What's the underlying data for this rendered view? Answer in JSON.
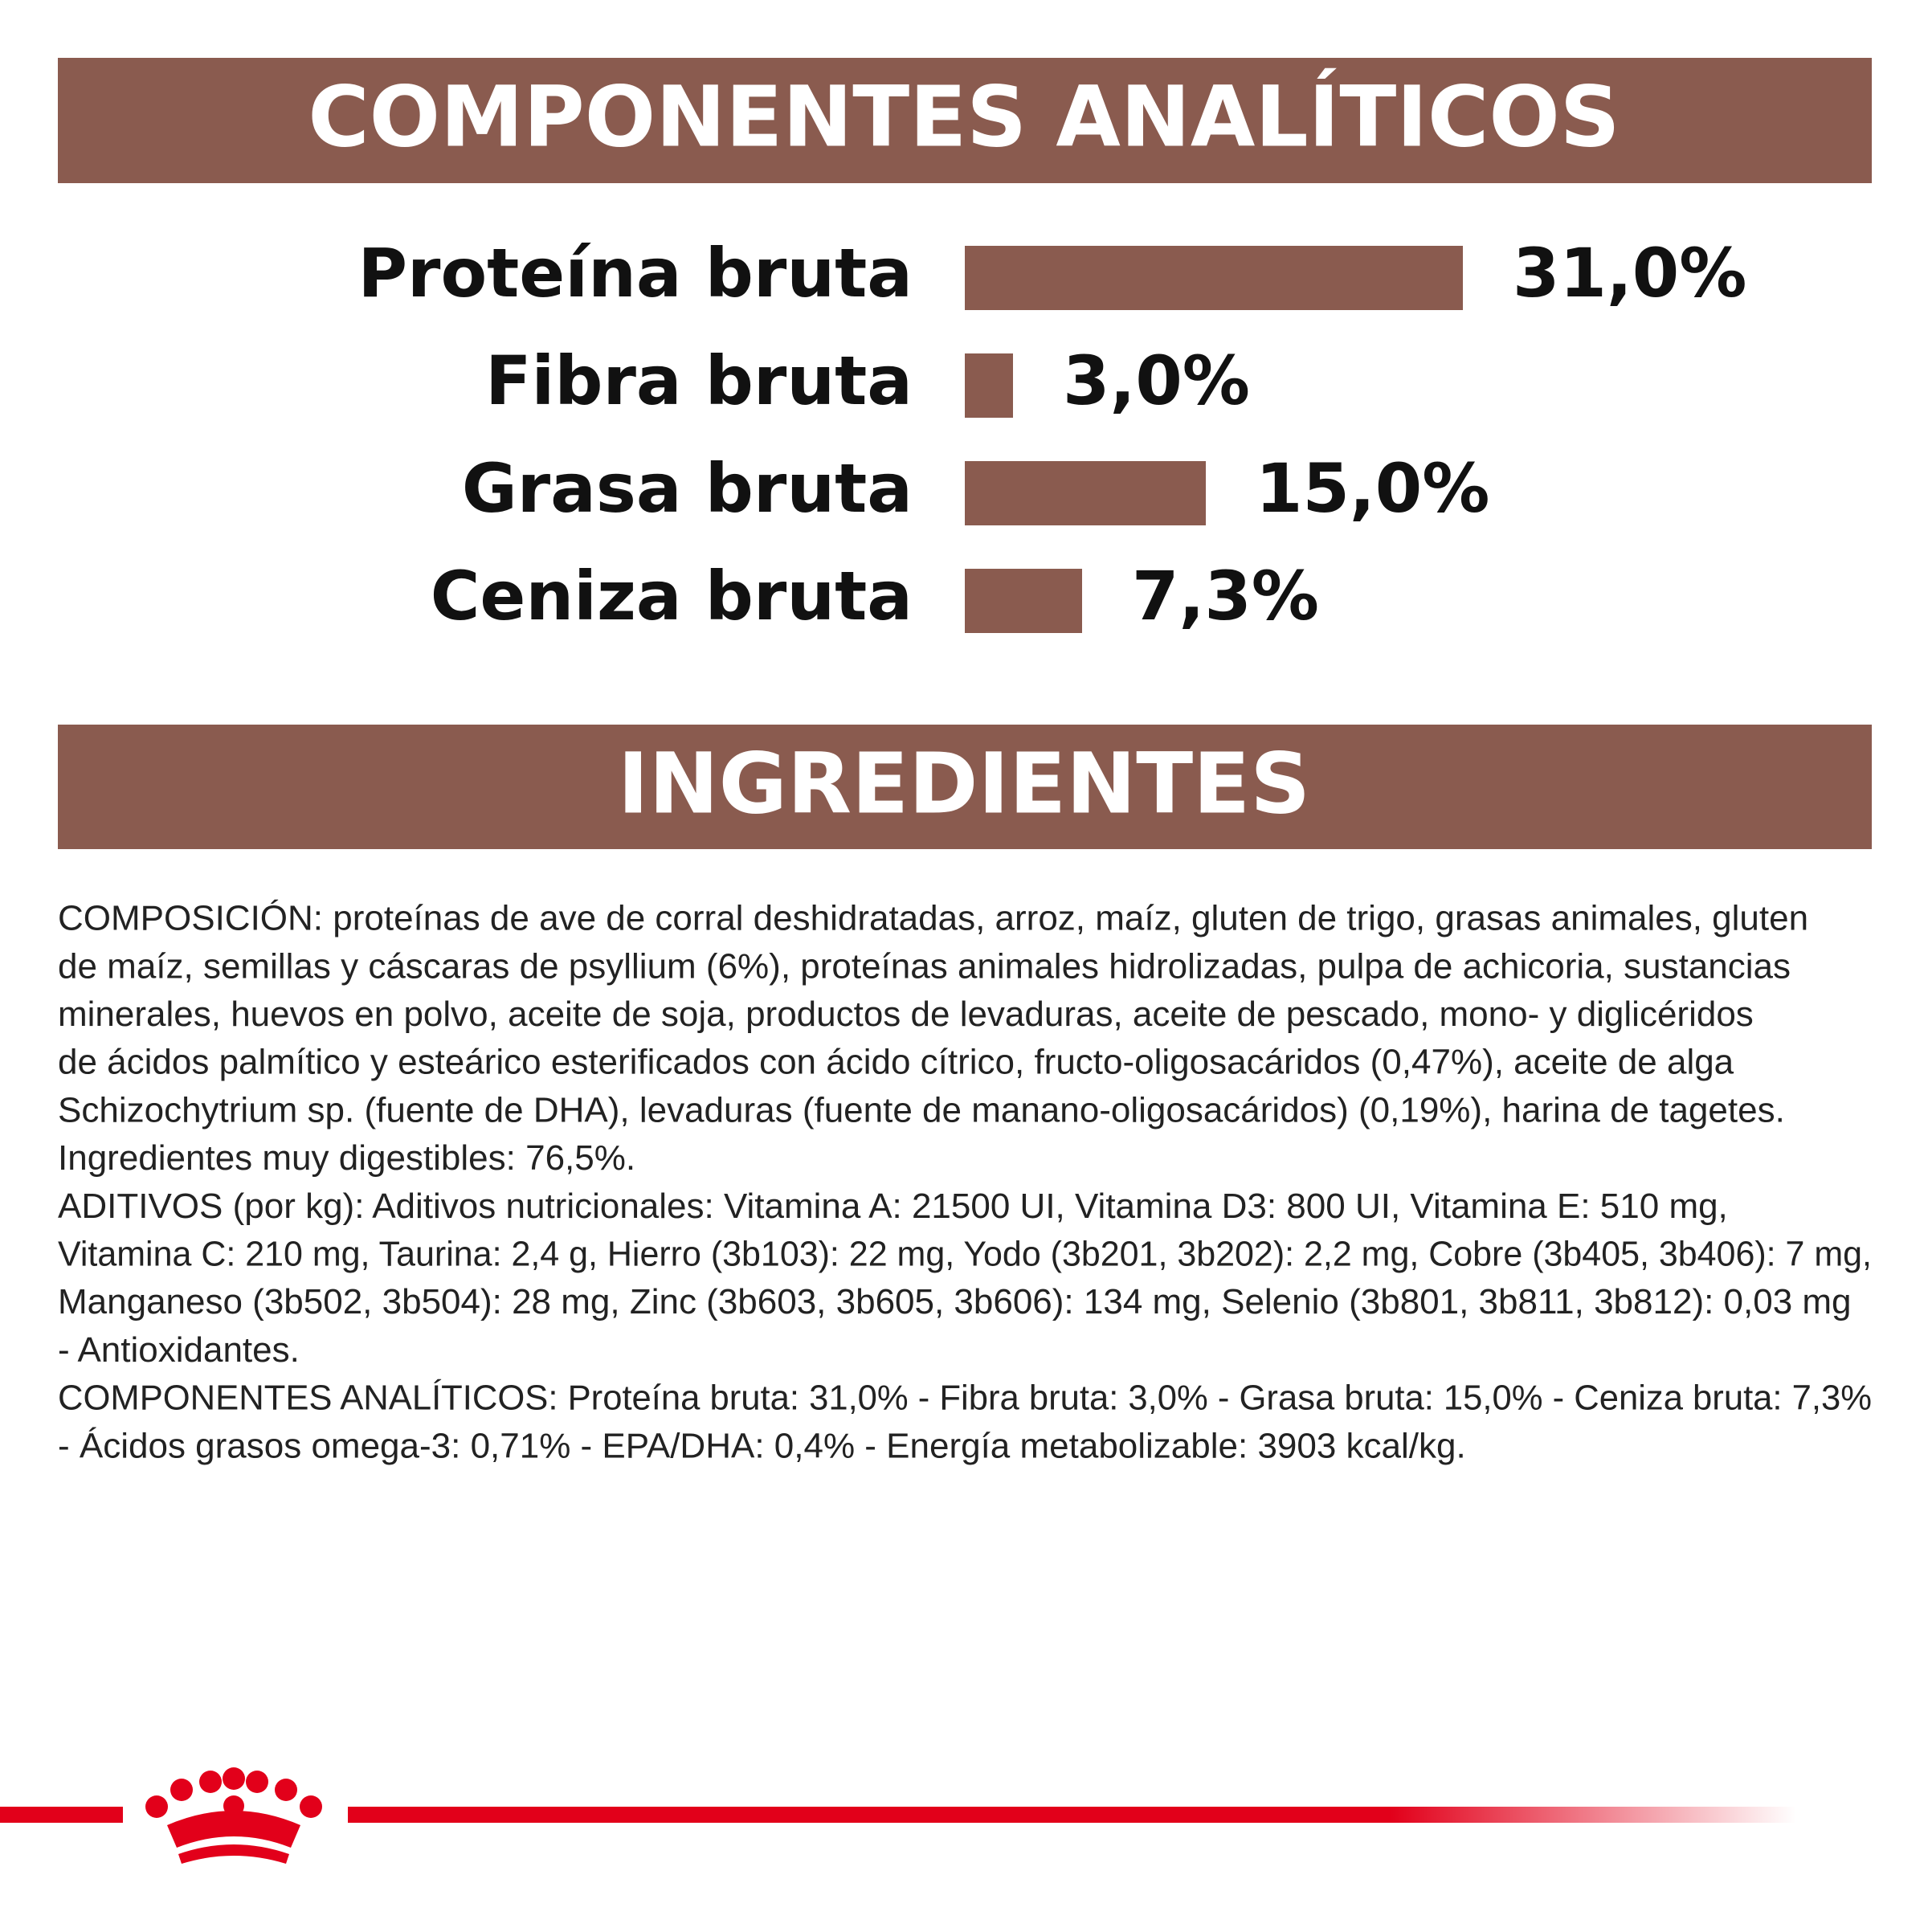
{
  "chart_data": {
    "type": "bar",
    "orientation": "horizontal",
    "title": "COMPONENTES ANALÍTICOS",
    "categories": [
      "Proteína bruta",
      "Fibra bruta",
      "Grasa bruta",
      "Ceniza bruta"
    ],
    "values": [
      31.0,
      3.0,
      15.0,
      7.3
    ],
    "value_labels": [
      "31,0%",
      "3,0%",
      "15,0%",
      "7,3%"
    ],
    "color": "#8a5b4f"
  },
  "ingredients": {
    "title": "INGREDIENTES",
    "lines": [
      "COMPOSICIÓN: proteínas de ave de corral deshidratadas, arroz, maíz, gluten de trigo, grasas animales, gluten",
      "de maíz, semillas y cáscaras de psyllium (6%), proteínas animales hidrolizadas, pulpa de achicoria, sustancias",
      "minerales, huevos en polvo, aceite de soja, productos de levaduras, aceite de pescado, mono- y diglicéridos",
      "de ácidos palmítico y esteárico esterificados con ácido cítrico, fructo-oligosacáridos (0,47%), aceite de alga",
      "Schizochytrium sp. (fuente de DHA), levaduras (fuente de manano-oligosacáridos) (0,19%), harina de tagetes.",
      "Ingredientes muy digestibles: 76,5%.",
      "ADITIVOS (por kg): Aditivos nutricionales: Vitamina A: 21500 UI, Vitamina D3: 800 UI, Vitamina E: 510 mg,",
      "Vitamina C: 210 mg, Taurina: 2,4 g, Hierro (3b103): 22 mg, Yodo (3b201, 3b202): 2,2 mg, Cobre (3b405, 3b406): 7 mg,",
      "Manganeso (3b502, 3b504): 28 mg, Zinc (3b603, 3b605, 3b606): 134 mg, Selenio (3b801, 3b811, 3b812): 0,03 mg",
      "- Antioxidantes.",
      "COMPONENTES ANALÍTICOS: Proteína bruta: 31,0% - Fibra bruta: 3,0% - Grasa bruta: 15,0% - Ceniza bruta: 7,3%",
      "- Ácidos grasos omega-3: 0,71% - EPA/DHA: 0,4% - Energía metabolizable: 3903 kcal/kg."
    ]
  }
}
